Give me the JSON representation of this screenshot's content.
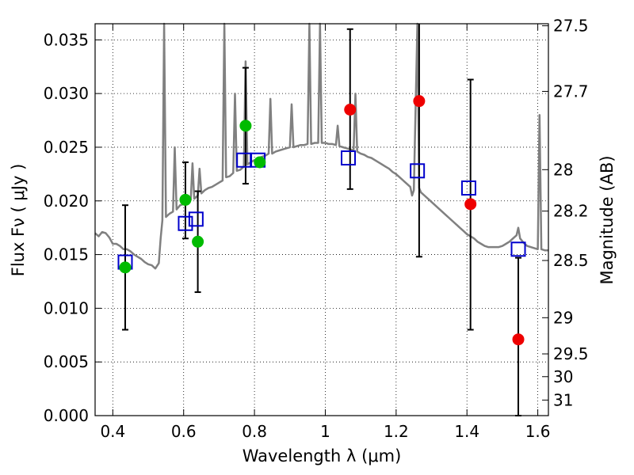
{
  "chart_data": {
    "type": "scatter",
    "xlabel": "Wavelength  λ (μm)",
    "ylabel": "Flux  Fν  ( μJy )",
    "ylabel_right": "Magnitude (AB)",
    "xlim": [
      0.35,
      1.63
    ],
    "ylim": [
      0.0,
      0.0365
    ],
    "grid": true,
    "x_ticks": [
      {
        "value": 0.4,
        "label": "0.4"
      },
      {
        "value": 0.6,
        "label": "0.6"
      },
      {
        "value": 0.8,
        "label": "0.8"
      },
      {
        "value": 1.0,
        "label": "1"
      },
      {
        "value": 1.2,
        "label": "1.2"
      },
      {
        "value": 1.4,
        "label": "1.4"
      },
      {
        "value": 1.6,
        "label": "1.6"
      }
    ],
    "y_ticks": [
      {
        "value": 0.0,
        "label": "0.000"
      },
      {
        "value": 0.005,
        "label": "0.005"
      },
      {
        "value": 0.01,
        "label": "0.010"
      },
      {
        "value": 0.015,
        "label": "0.015"
      },
      {
        "value": 0.02,
        "label": "0.020"
      },
      {
        "value": 0.025,
        "label": "0.025"
      },
      {
        "value": 0.03,
        "label": "0.030"
      },
      {
        "value": 0.035,
        "label": "0.035"
      }
    ],
    "right_ticks": [
      {
        "flux": 0.03631,
        "label": "27.5"
      },
      {
        "flux": 0.0302,
        "label": "27.7"
      },
      {
        "flux": 0.02291,
        "label": "28"
      },
      {
        "flux": 0.01905,
        "label": "28.2"
      },
      {
        "flux": 0.01445,
        "label": "28.5"
      },
      {
        "flux": 0.00912,
        "label": "29"
      },
      {
        "flux": 0.00575,
        "label": "29.5"
      },
      {
        "flux": 0.00363,
        "label": "30"
      },
      {
        "flux": 0.00145,
        "label": "31"
      }
    ],
    "colors": {
      "model": "#808080",
      "green": "#00bb00",
      "red": "#ee0000",
      "box": "#0000cc",
      "errorbar": "#000000"
    },
    "model_spectrum": [
      [
        0.35,
        0.017
      ],
      [
        0.36,
        0.0167
      ],
      [
        0.37,
        0.0171
      ],
      [
        0.38,
        0.017
      ],
      [
        0.39,
        0.0166
      ],
      [
        0.4,
        0.016
      ],
      [
        0.41,
        0.016
      ],
      [
        0.42,
        0.0158
      ],
      [
        0.43,
        0.0155
      ],
      [
        0.44,
        0.0155
      ],
      [
        0.45,
        0.0153
      ],
      [
        0.46,
        0.015
      ],
      [
        0.47,
        0.0148
      ],
      [
        0.48,
        0.0146
      ],
      [
        0.49,
        0.0143
      ],
      [
        0.5,
        0.0141
      ],
      [
        0.51,
        0.014
      ],
      [
        0.52,
        0.0137
      ],
      [
        0.53,
        0.0142
      ],
      [
        0.535,
        0.0165
      ],
      [
        0.54,
        0.0182
      ],
      [
        0.545,
        0.0365
      ],
      [
        0.55,
        0.0185
      ],
      [
        0.56,
        0.0188
      ],
      [
        0.57,
        0.019
      ],
      [
        0.575,
        0.025
      ],
      [
        0.58,
        0.0192
      ],
      [
        0.59,
        0.0196
      ],
      [
        0.6,
        0.0197
      ],
      [
        0.61,
        0.02
      ],
      [
        0.62,
        0.0201
      ],
      [
        0.625,
        0.0235
      ],
      [
        0.63,
        0.0202
      ],
      [
        0.64,
        0.0205
      ],
      [
        0.645,
        0.023
      ],
      [
        0.65,
        0.0207
      ],
      [
        0.66,
        0.021
      ],
      [
        0.67,
        0.0212
      ],
      [
        0.68,
        0.0213
      ],
      [
        0.69,
        0.0215
      ],
      [
        0.7,
        0.0217
      ],
      [
        0.71,
        0.0219
      ],
      [
        0.715,
        0.0365
      ],
      [
        0.72,
        0.0222
      ],
      [
        0.73,
        0.0223
      ],
      [
        0.74,
        0.0226
      ],
      [
        0.745,
        0.03
      ],
      [
        0.75,
        0.0228
      ],
      [
        0.76,
        0.0229
      ],
      [
        0.77,
        0.0232
      ],
      [
        0.775,
        0.033
      ],
      [
        0.78,
        0.0234
      ],
      [
        0.79,
        0.0236
      ],
      [
        0.8,
        0.0238
      ],
      [
        0.81,
        0.0239
      ],
      [
        0.82,
        0.0241
      ],
      [
        0.83,
        0.0242
      ],
      [
        0.84,
        0.0244
      ],
      [
        0.845,
        0.0295
      ],
      [
        0.85,
        0.0244
      ],
      [
        0.86,
        0.0246
      ],
      [
        0.87,
        0.0247
      ],
      [
        0.88,
        0.0248
      ],
      [
        0.89,
        0.0249
      ],
      [
        0.9,
        0.025
      ],
      [
        0.905,
        0.029
      ],
      [
        0.91,
        0.025
      ],
      [
        0.92,
        0.0251
      ],
      [
        0.93,
        0.0252
      ],
      [
        0.94,
        0.0252
      ],
      [
        0.95,
        0.0253
      ],
      [
        0.955,
        0.0365
      ],
      [
        0.96,
        0.0253
      ],
      [
        0.97,
        0.0254
      ],
      [
        0.98,
        0.0254
      ],
      [
        0.985,
        0.0365
      ],
      [
        0.99,
        0.0254
      ],
      [
        1.0,
        0.0254
      ],
      [
        1.01,
        0.0253
      ],
      [
        1.02,
        0.0253
      ],
      [
        1.03,
        0.0252
      ],
      [
        1.035,
        0.027
      ],
      [
        1.04,
        0.0251
      ],
      [
        1.05,
        0.025
      ],
      [
        1.06,
        0.0249
      ],
      [
        1.07,
        0.0248
      ],
      [
        1.08,
        0.0247
      ],
      [
        1.085,
        0.03
      ],
      [
        1.09,
        0.0246
      ],
      [
        1.1,
        0.0244
      ],
      [
        1.11,
        0.0243
      ],
      [
        1.12,
        0.0241
      ],
      [
        1.13,
        0.024
      ],
      [
        1.14,
        0.0238
      ],
      [
        1.15,
        0.0236
      ],
      [
        1.16,
        0.0234
      ],
      [
        1.17,
        0.0232
      ],
      [
        1.18,
        0.023
      ],
      [
        1.19,
        0.0227
      ],
      [
        1.2,
        0.0225
      ],
      [
        1.21,
        0.0222
      ],
      [
        1.22,
        0.0219
      ],
      [
        1.23,
        0.0216
      ],
      [
        1.24,
        0.0213
      ],
      [
        1.245,
        0.0205
      ],
      [
        1.25,
        0.021
      ],
      [
        1.26,
        0.0365
      ],
      [
        1.265,
        0.0212
      ],
      [
        1.27,
        0.0208
      ],
      [
        1.28,
        0.0205
      ],
      [
        1.29,
        0.0202
      ],
      [
        1.3,
        0.0199
      ],
      [
        1.31,
        0.0196
      ],
      [
        1.32,
        0.0193
      ],
      [
        1.33,
        0.019
      ],
      [
        1.34,
        0.0187
      ],
      [
        1.35,
        0.0184
      ],
      [
        1.36,
        0.0181
      ],
      [
        1.37,
        0.0178
      ],
      [
        1.38,
        0.0175
      ],
      [
        1.39,
        0.0172
      ],
      [
        1.4,
        0.0169
      ],
      [
        1.41,
        0.0167
      ],
      [
        1.42,
        0.0165
      ],
      [
        1.43,
        0.0162
      ],
      [
        1.44,
        0.016
      ],
      [
        1.45,
        0.0158
      ],
      [
        1.46,
        0.0157
      ],
      [
        1.47,
        0.0157
      ],
      [
        1.48,
        0.0157
      ],
      [
        1.49,
        0.0157
      ],
      [
        1.5,
        0.0158
      ],
      [
        1.51,
        0.016
      ],
      [
        1.52,
        0.0162
      ],
      [
        1.53,
        0.0165
      ],
      [
        1.54,
        0.0168
      ],
      [
        1.545,
        0.0175
      ],
      [
        1.55,
        0.0165
      ],
      [
        1.56,
        0.0161
      ],
      [
        1.57,
        0.0158
      ],
      [
        1.58,
        0.0157
      ],
      [
        1.59,
        0.0156
      ],
      [
        1.6,
        0.0155
      ],
      [
        1.605,
        0.028
      ],
      [
        1.61,
        0.0155
      ],
      [
        1.62,
        0.0154
      ],
      [
        1.63,
        0.0154
      ]
    ],
    "green_points": [
      {
        "x": 0.435,
        "y": 0.0138
      },
      {
        "x": 0.605,
        "y": 0.0201
      },
      {
        "x": 0.64,
        "y": 0.0162
      },
      {
        "x": 0.775,
        "y": 0.027
      },
      {
        "x": 0.815,
        "y": 0.0236
      }
    ],
    "red_points": [
      {
        "x": 1.07,
        "y": 0.0285
      },
      {
        "x": 1.265,
        "y": 0.0293
      },
      {
        "x": 1.41,
        "y": 0.0197
      },
      {
        "x": 1.545,
        "y": 0.0071
      }
    ],
    "box_points": [
      {
        "x": 0.435,
        "y": 0.0143
      },
      {
        "x": 0.605,
        "y": 0.0179
      },
      {
        "x": 0.635,
        "y": 0.0183
      },
      {
        "x": 0.77,
        "y": 0.0238
      },
      {
        "x": 0.81,
        "y": 0.0238
      },
      {
        "x": 1.065,
        "y": 0.024
      },
      {
        "x": 1.26,
        "y": 0.0228
      },
      {
        "x": 1.405,
        "y": 0.0212
      },
      {
        "x": 1.545,
        "y": 0.0155
      }
    ],
    "error_bars": [
      {
        "x": 0.435,
        "low": 0.008,
        "high": 0.0196
      },
      {
        "x": 0.605,
        "low": 0.0165,
        "high": 0.0236
      },
      {
        "x": 0.64,
        "low": 0.0115,
        "high": 0.0209
      },
      {
        "x": 0.775,
        "low": 0.0216,
        "high": 0.0324
      },
      {
        "x": 1.07,
        "low": 0.0211,
        "high": 0.036
      },
      {
        "x": 1.265,
        "low": 0.0148,
        "high": 0.037
      },
      {
        "x": 1.41,
        "low": 0.008,
        "high": 0.0313
      },
      {
        "x": 1.545,
        "low": 0.0,
        "high": 0.0147
      }
    ]
  }
}
